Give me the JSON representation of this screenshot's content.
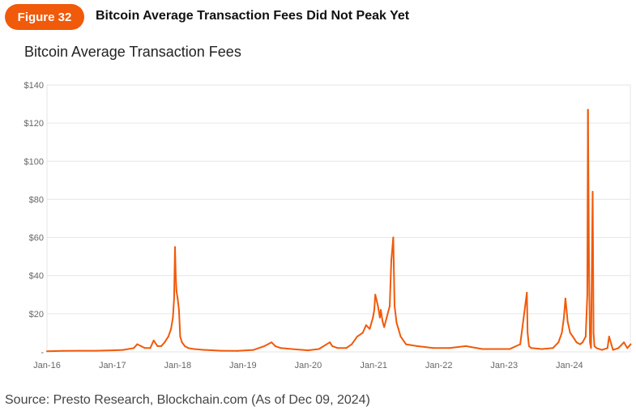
{
  "figure": {
    "label": "Figure 32",
    "title": "Bitcoin Average Transaction Fees Did Not Peak Yet"
  },
  "source": "Source: Presto Research, Blockchain.com (As of Dec 09, 2024)",
  "colors": {
    "accent": "#f05a0a",
    "line": "#f05a0a",
    "grid": "#e6e6e6"
  },
  "chart_data": {
    "type": "line",
    "title": "Bitcoin Average Transaction Fees",
    "xlabel": "",
    "ylabel": "",
    "x_ticks": [
      "Jan-16",
      "Jan-17",
      "Jan-18",
      "Jan-19",
      "Jan-20",
      "Jan-21",
      "Jan-22",
      "Jan-23",
      "Jan-24"
    ],
    "y_ticks": [
      "$140",
      "$120",
      "$100",
      "$80",
      "$60",
      "$40",
      "$20",
      "-"
    ],
    "ylim": [
      0,
      140
    ],
    "xlim": [
      "2016-01-01",
      "2024-12-09"
    ],
    "grid": true,
    "legend": "none",
    "series": [
      {
        "x": [
          "2016-01-01",
          "2016-04-01",
          "2016-07-01",
          "2016-10-01",
          "2017-01-01",
          "2017-03-01",
          "2017-05-01",
          "2017-05-20",
          "2017-06-10",
          "2017-07-01",
          "2017-08-01",
          "2017-08-20",
          "2017-09-10",
          "2017-10-01",
          "2017-10-20",
          "2017-11-10",
          "2017-11-25",
          "2017-12-05",
          "2017-12-12",
          "2017-12-17",
          "2017-12-21",
          "2017-12-25",
          "2018-01-01",
          "2018-01-08",
          "2018-01-15",
          "2018-01-25",
          "2018-02-10",
          "2018-03-01",
          "2018-04-01",
          "2018-06-01",
          "2018-09-01",
          "2018-12-01",
          "2019-03-01",
          "2019-05-01",
          "2019-06-10",
          "2019-07-01",
          "2019-08-01",
          "2019-10-01",
          "2020-01-01",
          "2020-03-01",
          "2020-05-01",
          "2020-05-15",
          "2020-06-15",
          "2020-08-01",
          "2020-09-01",
          "2020-10-01",
          "2020-11-01",
          "2020-11-20",
          "2020-12-10",
          "2020-12-28",
          "2021-01-05",
          "2021-01-10",
          "2021-01-15",
          "2021-01-25",
          "2021-02-05",
          "2021-02-10",
          "2021-02-20",
          "2021-03-01",
          "2021-03-15",
          "2021-04-01",
          "2021-04-10",
          "2021-04-21",
          "2021-04-28",
          "2021-05-10",
          "2021-05-20",
          "2021-06-01",
          "2021-07-01",
          "2021-09-01",
          "2021-12-01",
          "2022-03-01",
          "2022-06-01",
          "2022-09-01",
          "2022-12-01",
          "2023-02-01",
          "2023-04-01",
          "2023-05-08",
          "2023-05-12",
          "2023-05-20",
          "2023-06-01",
          "2023-08-01",
          "2023-10-01",
          "2023-11-01",
          "2023-11-20",
          "2023-12-01",
          "2023-12-10",
          "2023-12-16",
          "2023-12-22",
          "2024-01-05",
          "2024-01-20",
          "2024-02-10",
          "2024-03-01",
          "2024-03-15",
          "2024-04-01",
          "2024-04-10",
          "2024-04-14",
          "2024-04-20",
          "2024-04-25",
          "2024-05-01",
          "2024-05-10",
          "2024-05-15",
          "2024-05-20",
          "2024-06-01",
          "2024-07-01",
          "2024-08-01",
          "2024-08-10",
          "2024-09-01",
          "2024-10-01",
          "2024-11-01",
          "2024-11-20",
          "2024-12-09"
        ],
        "y": [
          0.3,
          0.5,
          0.6,
          0.6,
          0.8,
          1,
          2,
          4,
          3,
          2,
          2,
          6,
          3,
          3,
          5,
          8,
          12,
          18,
          28,
          55,
          40,
          32,
          28,
          22,
          8,
          5,
          3,
          2,
          1.5,
          1,
          0.6,
          0.5,
          1,
          3,
          5,
          3,
          2,
          1.5,
          0.8,
          1.5,
          5,
          3,
          2,
          2,
          4,
          8,
          10,
          14,
          12,
          18,
          22,
          30,
          28,
          24,
          18,
          22,
          16,
          13,
          18,
          24,
          48,
          60,
          24,
          15,
          12,
          8,
          4,
          3,
          2,
          2,
          3,
          1.5,
          1.5,
          1.5,
          4,
          31,
          10,
          3,
          2,
          1.5,
          2,
          5,
          10,
          18,
          28,
          22,
          16,
          10,
          8,
          5,
          4,
          5,
          8,
          30,
          127,
          40,
          5,
          2,
          84,
          10,
          3,
          2,
          1,
          2,
          8,
          1,
          2,
          5,
          2,
          4
        ]
      }
    ]
  }
}
